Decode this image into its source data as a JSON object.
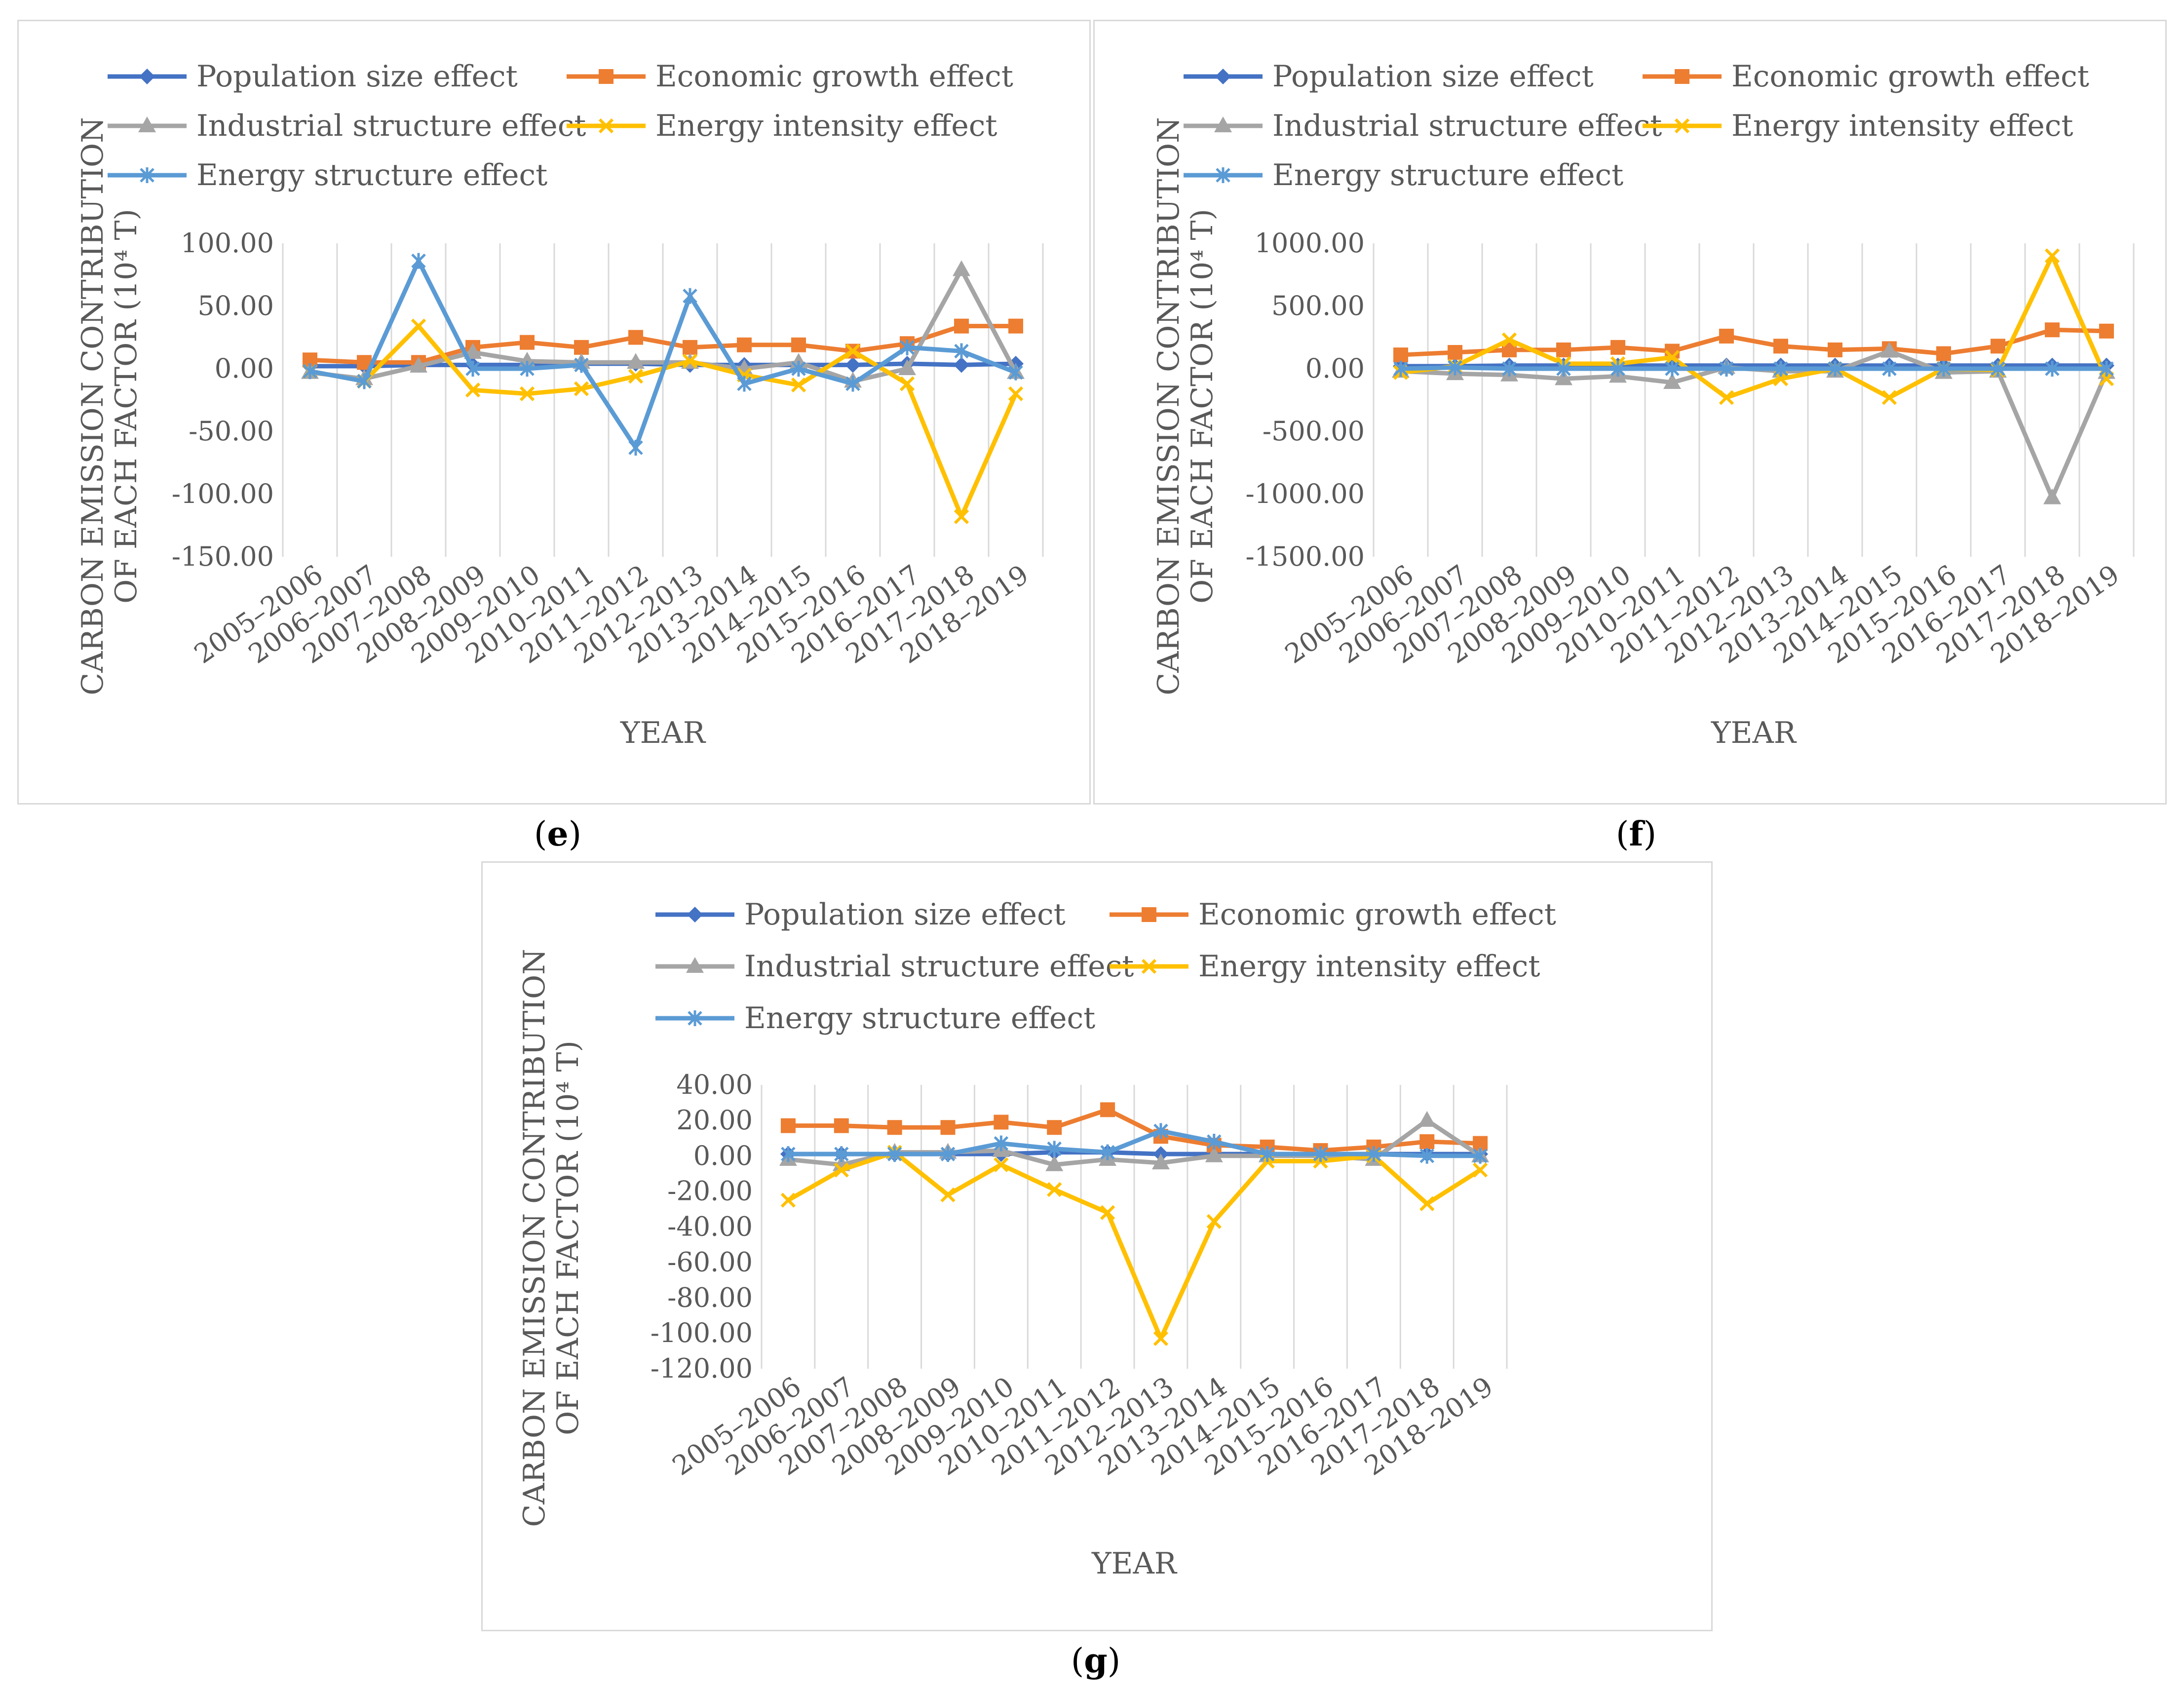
{
  "captions": {
    "e": "e",
    "f": "f",
    "g": "g"
  },
  "series_styles": [
    {
      "name": "Population size effect",
      "color": "#4472c4",
      "marker": "diamond"
    },
    {
      "name": "Economic growth effect",
      "color": "#ed7d31",
      "marker": "square"
    },
    {
      "name": "Industrial structure effect",
      "color": "#a5a5a5",
      "marker": "triangle"
    },
    {
      "name": "Energy intensity effect",
      "color": "#ffc000",
      "marker": "x"
    },
    {
      "name": "Energy structure effect",
      "color": "#5b9bd5",
      "marker": "star"
    }
  ],
  "chart_data": [
    {
      "id": "e",
      "type": "line",
      "caption": "e",
      "title": "",
      "xlabel": "YEAR",
      "ylabel": [
        "CARBON EMISSION CONTRIBUTION",
        "OF EACH FACTOR (10⁴ T)"
      ],
      "categories": [
        "2005–2006",
        "2006–2007",
        "2007–2008",
        "2008–2009",
        "2009–2010",
        "2010–2011",
        "2011–2012",
        "2012–2013",
        "2013–2014",
        "2014–2015",
        "2015–2016",
        "2016–2017",
        "2017–2018",
        "2018–2019"
      ],
      "ylim": [
        -150,
        100
      ],
      "ystep": 50,
      "ytick_labels": [
        "-150.00",
        "-100.00",
        "-50.00",
        "0.00",
        "50.00",
        "100.00"
      ],
      "grid": "vertical",
      "legend": "top",
      "series": [
        {
          "name": "Population size effect",
          "values": [
            2,
            2,
            3,
            3,
            3,
            4,
            4,
            3,
            3,
            3,
            3,
            4,
            3,
            4
          ]
        },
        {
          "name": "Economic growth effect",
          "values": [
            7,
            5,
            5,
            17,
            21,
            17,
            25,
            17,
            19,
            19,
            14,
            20,
            34,
            34
          ]
        },
        {
          "name": "Industrial structure effect",
          "values": [
            -3,
            -8,
            2,
            13,
            6,
            5,
            5,
            5,
            0,
            5,
            -10,
            0,
            79,
            -3
          ]
        },
        {
          "name": "Energy intensity effect",
          "values": [
            -2,
            -10,
            34,
            -17,
            -20,
            -16,
            -6,
            6,
            -5,
            -13,
            14,
            -12,
            -118,
            -20
          ]
        },
        {
          "name": "Energy structure effect",
          "values": [
            -2,
            -10,
            86,
            0,
            0,
            3,
            -63,
            58,
            -12,
            0,
            -12,
            17,
            14,
            -3
          ]
        }
      ]
    },
    {
      "id": "f",
      "type": "line",
      "caption": "f",
      "title": "",
      "xlabel": "YEAR",
      "ylabel": [
        "CARBON EMISSION CONTRIBUTION",
        "OF EACH FACTOR (10⁴ T)"
      ],
      "categories": [
        "2005–2006",
        "2006–2007",
        "2007–2008",
        "2008–2009",
        "2009–2010",
        "2010–2011",
        "2011–2012",
        "2012–2013",
        "2013–2014",
        "2014–2015",
        "2015–2016",
        "2016–2017",
        "2017–2018",
        "2018–2019"
      ],
      "ylim": [
        -1500,
        1000
      ],
      "ystep": 500,
      "ytick_labels": [
        "-1500.00",
        "-1000.00",
        "-500.00",
        "0.00",
        "500.00",
        "1000.00"
      ],
      "grid": "vertical",
      "legend": "top",
      "series": [
        {
          "name": "Population size effect",
          "values": [
            20,
            20,
            25,
            25,
            25,
            25,
            25,
            25,
            25,
            25,
            25,
            25,
            25,
            25
          ]
        },
        {
          "name": "Economic growth effect",
          "values": [
            110,
            130,
            150,
            150,
            170,
            140,
            260,
            180,
            150,
            160,
            120,
            180,
            310,
            300
          ]
        },
        {
          "name": "Industrial structure effect",
          "values": [
            -20,
            -40,
            -50,
            -80,
            -60,
            -110,
            10,
            -20,
            -20,
            140,
            -30,
            -20,
            -1030,
            -30
          ]
        },
        {
          "name": "Energy intensity effect",
          "values": [
            -30,
            20,
            230,
            40,
            40,
            90,
            -230,
            -80,
            0,
            -230,
            0,
            -10,
            900,
            -80
          ]
        },
        {
          "name": "Energy structure effect",
          "values": [
            0,
            10,
            0,
            0,
            0,
            0,
            0,
            0,
            0,
            0,
            0,
            0,
            0,
            0
          ]
        }
      ]
    },
    {
      "id": "g",
      "type": "line",
      "caption": "g",
      "title": "",
      "xlabel": "YEAR",
      "ylabel": [
        "CARBON EMISSION CONTRIBUTION",
        "OF EACH FACTOR (10⁴ T)"
      ],
      "categories": [
        "2005–2006",
        "2006–2007",
        "2007–2008",
        "2008–2009",
        "2009–2010",
        "2010–2011",
        "2011–2012",
        "2012–2013",
        "2013–2014",
        "2014–2015",
        "2015–2016",
        "2016–2017",
        "2017–2018",
        "2018–2019"
      ],
      "ylim": [
        -120,
        40
      ],
      "ystep": 20,
      "ytick_labels": [
        "-120.00",
        "-100.00",
        "-80.00",
        "-60.00",
        "-40.00",
        "-20.00",
        "0.00",
        "20.00",
        "40.00"
      ],
      "grid": "vertical",
      "legend": "top",
      "series": [
        {
          "name": "Population size effect",
          "values": [
            1,
            1,
            1,
            1,
            1,
            2,
            2,
            1,
            1,
            1,
            1,
            1,
            1,
            1
          ]
        },
        {
          "name": "Economic growth effect",
          "values": [
            17,
            17,
            16,
            16,
            19,
            16,
            26,
            11,
            6,
            5,
            3,
            5,
            8,
            7
          ]
        },
        {
          "name": "Industrial structure effect",
          "values": [
            -2,
            -5,
            2,
            2,
            3,
            -5,
            -2,
            -4,
            0,
            0,
            0,
            -2,
            20,
            0
          ]
        },
        {
          "name": "Energy intensity effect",
          "values": [
            -25,
            -8,
            2,
            -22,
            -5,
            -19,
            -32,
            -103,
            -37,
            -3,
            -3,
            0,
            -27,
            -8
          ]
        },
        {
          "name": "Energy structure effect",
          "values": [
            1,
            1,
            1,
            1,
            7,
            4,
            2,
            14,
            8,
            1,
            1,
            1,
            0,
            0
          ]
        }
      ]
    }
  ]
}
